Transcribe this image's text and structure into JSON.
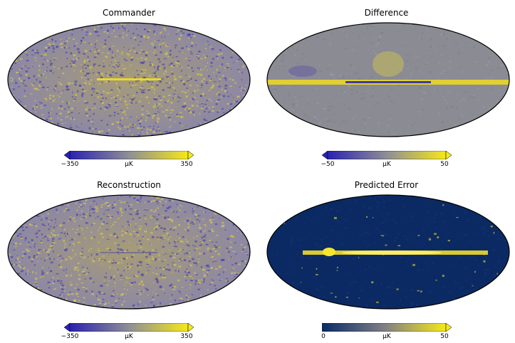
{
  "panels": [
    {
      "title": "Commander",
      "unit": "μK",
      "ticks": [
        "−350",
        "350"
      ],
      "colormap": "blue-grey-yellow"
    },
    {
      "title": "Difference",
      "unit": "μK",
      "ticks": [
        "−50",
        "50"
      ],
      "colormap": "blue-grey-yellow"
    },
    {
      "title": "Reconstruction",
      "unit": "μK",
      "ticks": [
        "−350",
        "350"
      ],
      "colormap": "blue-grey-yellow"
    },
    {
      "title": "Predicted Error",
      "unit": "μK",
      "ticks": [
        "0",
        "50"
      ],
      "colormap": "navy-grey-yellow"
    }
  ],
  "colors": {
    "low": "#3b2fb8",
    "mid": "#8a8a92",
    "high": "#f2e21a",
    "navy": "#0b2a63"
  }
}
